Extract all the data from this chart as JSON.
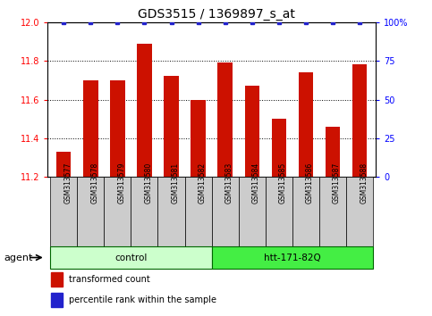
{
  "title": "GDS3515 / 1369897_s_at",
  "samples": [
    "GSM313577",
    "GSM313578",
    "GSM313579",
    "GSM313580",
    "GSM313581",
    "GSM313582",
    "GSM313583",
    "GSM313584",
    "GSM313585",
    "GSM313586",
    "GSM313587",
    "GSM313588"
  ],
  "values": [
    11.33,
    11.7,
    11.7,
    11.89,
    11.72,
    11.6,
    11.79,
    11.67,
    11.5,
    11.74,
    11.46,
    11.78
  ],
  "bar_color": "#cc1100",
  "percentile_color": "#2222cc",
  "ylim": [
    11.2,
    12.0
  ],
  "yticks_left": [
    11.2,
    11.4,
    11.6,
    11.8,
    12.0
  ],
  "yticks_right": [
    0,
    25,
    50,
    75,
    100
  ],
  "groups": [
    {
      "label": "control",
      "start": 0,
      "end": 5,
      "color": "#ccffcc",
      "border": "#008800"
    },
    {
      "label": "htt-171-82Q",
      "start": 6,
      "end": 11,
      "color": "#44ee44",
      "border": "#008800"
    }
  ],
  "agent_label": "agent",
  "legend_items": [
    {
      "color": "#cc1100",
      "label": "transformed count"
    },
    {
      "color": "#2222cc",
      "label": "percentile rank within the sample"
    }
  ],
  "sample_box_color": "#cccccc",
  "title_fontsize": 10,
  "bar_width": 0.55
}
